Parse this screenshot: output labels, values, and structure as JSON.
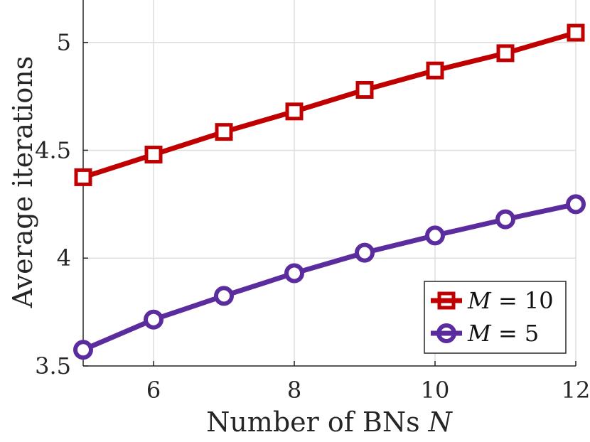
{
  "chart_data": {
    "type": "line",
    "title": "",
    "xlabel": "Number of BNs",
    "xlabel_var": "N",
    "ylabel": "Average iterations",
    "xlim": [
      5,
      12
    ],
    "ylim": [
      3.5,
      5.2
    ],
    "xticks": [
      6,
      8,
      10,
      12
    ],
    "yticks": [
      3.5,
      4,
      4.5,
      5
    ],
    "ytick_labels": [
      "3.5",
      "4",
      "4.5",
      "5"
    ],
    "grid": true,
    "legend_position": "bottom-right",
    "x": [
      5,
      6,
      7,
      8,
      9,
      10,
      11,
      12
    ],
    "series": [
      {
        "name": "M = 10",
        "legend_var": "M",
        "legend_rest": " = 10",
        "color": "#C00000",
        "marker": "square",
        "values": [
          4.375,
          4.48,
          4.585,
          4.68,
          4.78,
          4.87,
          4.95,
          5.045
        ]
      },
      {
        "name": "M = 5",
        "legend_var": "M",
        "legend_rest": " = 5",
        "color": "#5B2C9E",
        "marker": "circle",
        "values": [
          3.575,
          3.715,
          3.825,
          3.93,
          4.025,
          4.105,
          4.18,
          4.25
        ]
      }
    ]
  }
}
